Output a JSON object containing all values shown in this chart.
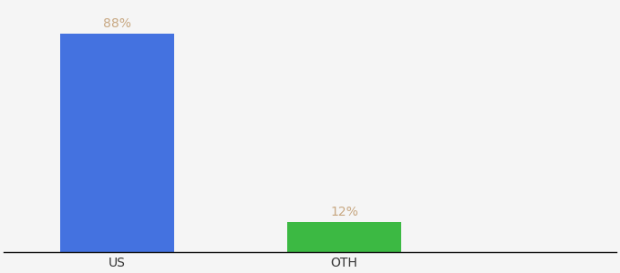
{
  "categories": [
    "US",
    "OTH"
  ],
  "values": [
    88,
    12
  ],
  "bar_colors": [
    "#4472e0",
    "#3cb943"
  ],
  "label_color": "#c8a882",
  "background_color": "#f5f5f5",
  "ylim": [
    0,
    100
  ],
  "bar_positions": [
    0,
    1
  ],
  "bar_width": 0.5,
  "label_fontsize": 10,
  "tick_fontsize": 10,
  "xlim": [
    -0.5,
    2.2
  ]
}
